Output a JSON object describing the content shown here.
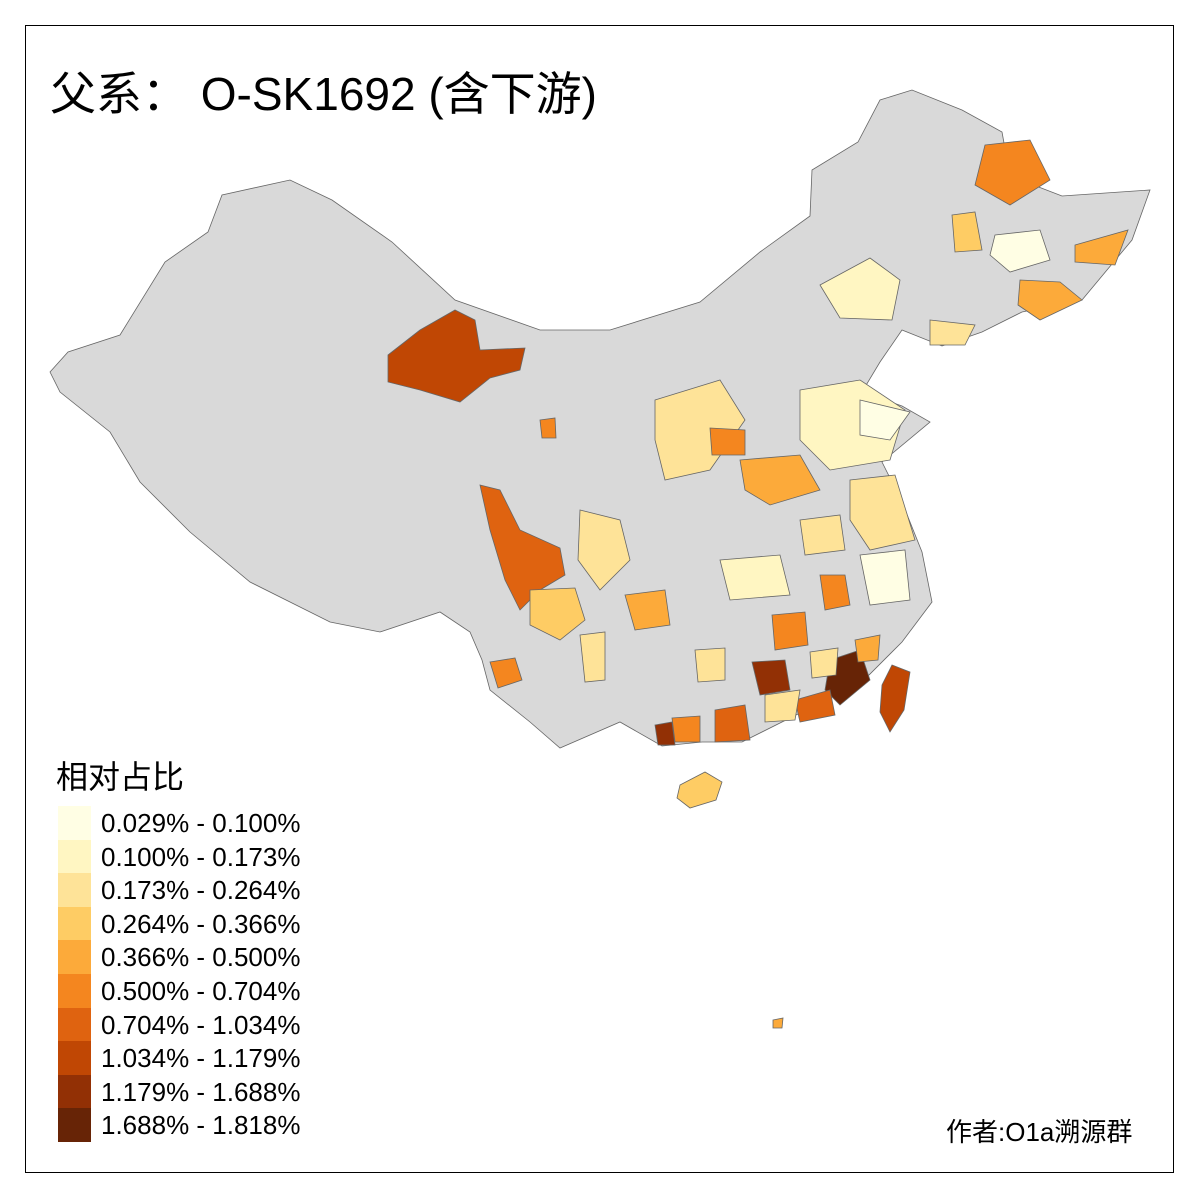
{
  "title": "父系： O-SK1692 (含下游)",
  "legend": {
    "title": "相对占比",
    "classes": [
      {
        "label": "0.029% - 0.100%",
        "color": "#FFFEE4"
      },
      {
        "label": "0.100% - 0.173%",
        "color": "#FFF6C2"
      },
      {
        "label": "0.173% - 0.264%",
        "color": "#FEE398"
      },
      {
        "label": "0.264% - 0.366%",
        "color": "#FECC64"
      },
      {
        "label": "0.366% - 0.500%",
        "color": "#FCAA3A"
      },
      {
        "label": "0.500% - 0.704%",
        "color": "#F4861F"
      },
      {
        "label": "0.704% - 1.034%",
        "color": "#DF6310"
      },
      {
        "label": "1.034% - 1.179%",
        "color": "#C04704"
      },
      {
        "label": "1.179% - 1.688%",
        "color": "#923005"
      },
      {
        "label": "1.688% - 1.818%",
        "color": "#672406"
      }
    ]
  },
  "map": {
    "base_color": "#D9D9D9",
    "border_color": "#666666"
  },
  "author": "作者:O1a溯源群"
}
